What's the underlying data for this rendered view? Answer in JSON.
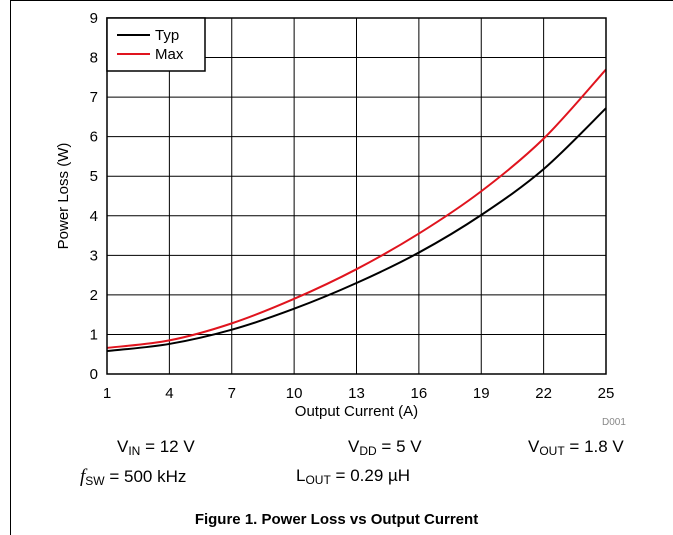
{
  "chart_data": {
    "type": "line",
    "xlabel": "Output Current (A)",
    "ylabel": "Power Loss (W)",
    "xlim": [
      1,
      25
    ],
    "ylim": [
      0,
      9
    ],
    "xticks": [
      "1",
      "4",
      "7",
      "10",
      "13",
      "16",
      "19",
      "22",
      "25"
    ],
    "yticks": [
      "0",
      "1",
      "2",
      "3",
      "4",
      "5",
      "6",
      "7",
      "8",
      "9"
    ],
    "grid": true,
    "legend": "top-left",
    "series": [
      {
        "name": "Typ",
        "color": "#000000",
        "x": [
          1,
          4,
          7,
          10,
          13,
          16,
          19,
          22,
          25
        ],
        "y": [
          0.58,
          0.76,
          1.12,
          1.65,
          2.3,
          3.07,
          4.02,
          5.18,
          6.72
        ]
      },
      {
        "name": "Max",
        "color": "#e0141e",
        "x": [
          1,
          4,
          7,
          10,
          13,
          16,
          19,
          22,
          25
        ],
        "y": [
          0.66,
          0.85,
          1.28,
          1.9,
          2.65,
          3.55,
          4.62,
          5.95,
          7.7
        ]
      }
    ]
  },
  "conditions": {
    "vin": {
      "symbol": "V",
      "sub": "IN",
      "value": "= 12 V"
    },
    "vdd": {
      "symbol": "V",
      "sub": "DD",
      "value": "= 5 V"
    },
    "vout": {
      "symbol": "V",
      "sub": "OUT",
      "value": "= 1.8 V"
    },
    "fsw": {
      "symbol": "f",
      "sub": "SW",
      "value": "= 500 kHz"
    },
    "lout": {
      "symbol": "L",
      "sub": "OUT",
      "value": "= 0.29 µH"
    }
  },
  "figure_id": "D001",
  "caption": "Figure 1. Power Loss vs Output Current"
}
